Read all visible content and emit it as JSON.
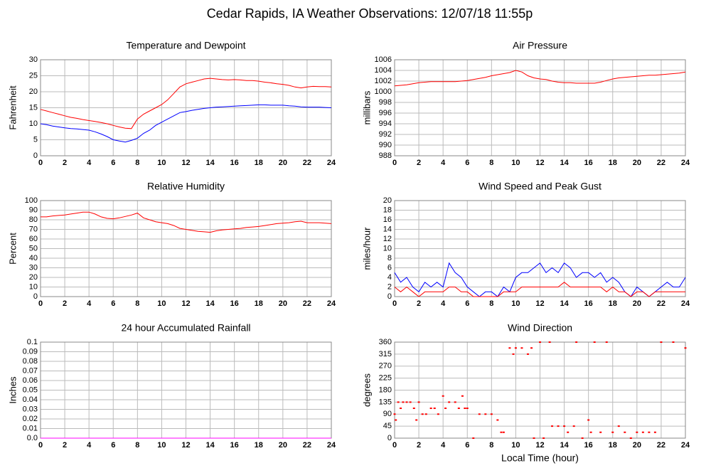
{
  "title": "Cedar Rapids, IA Weather Observations: 12/07/18 11:55p",
  "chart_data": [
    {
      "type": "line",
      "title": "Temperature and Dewpoint",
      "ylabel": "Fahrenheit",
      "x": [
        0,
        0.5,
        1,
        1.5,
        2,
        2.5,
        3,
        3.5,
        4,
        4.5,
        5,
        5.5,
        6,
        6.5,
        7,
        7.5,
        8,
        8.5,
        9,
        9.5,
        10,
        10.5,
        11,
        11.5,
        12,
        12.5,
        13,
        13.5,
        14,
        14.5,
        15,
        15.5,
        16,
        16.5,
        17,
        17.5,
        18,
        18.5,
        19,
        19.5,
        20,
        20.5,
        21,
        21.5,
        22,
        22.5,
        23,
        23.5,
        24
      ],
      "series": [
        {
          "color": "#ff0000",
          "values": [
            14.5,
            14,
            13.5,
            13,
            12.5,
            12,
            11.7,
            11.3,
            11,
            10.7,
            10.4,
            10,
            9.5,
            9,
            8.6,
            8.5,
            11.5,
            13,
            14,
            15,
            16,
            17.5,
            19.5,
            21.5,
            22.5,
            23,
            23.5,
            24,
            24.2,
            24,
            23.8,
            23.7,
            23.8,
            23.7,
            23.5,
            23.5,
            23.3,
            23,
            22.8,
            22.5,
            22.3,
            22,
            21.5,
            21.2,
            21.5,
            21.7,
            21.6,
            21.6,
            21.5
          ]
        },
        {
          "color": "#0000ff",
          "values": [
            10,
            9.7,
            9.3,
            9,
            8.7,
            8.5,
            8.4,
            8.2,
            8,
            7.5,
            6.8,
            6,
            5,
            4.6,
            4.3,
            4.8,
            5.5,
            7,
            8,
            9.5,
            10.5,
            11.5,
            12.5,
            13.5,
            13.8,
            14.2,
            14.5,
            14.8,
            15,
            15.2,
            15.3,
            15.4,
            15.5,
            15.6,
            15.7,
            15.8,
            15.9,
            15.9,
            15.8,
            15.8,
            15.8,
            15.6,
            15.5,
            15.3,
            15.2,
            15.2,
            15.2,
            15.1,
            15
          ]
        }
      ],
      "xlim": [
        0,
        24
      ],
      "xticks": [
        0,
        2,
        4,
        6,
        8,
        10,
        12,
        14,
        16,
        18,
        20,
        22,
        24
      ],
      "ylim": [
        0,
        30
      ],
      "yticks": [
        0,
        5,
        10,
        15,
        20,
        25,
        30
      ],
      "grid": true
    },
    {
      "type": "line",
      "title": "Air Pressure",
      "ylabel": "millibars",
      "x": [
        0,
        0.5,
        1,
        1.5,
        2,
        2.5,
        3,
        3.5,
        4,
        4.5,
        5,
        5.5,
        6,
        6.5,
        7,
        7.5,
        8,
        8.5,
        9,
        9.5,
        10,
        10.5,
        11,
        11.5,
        12,
        12.5,
        13,
        13.5,
        14,
        14.5,
        15,
        15.5,
        16,
        16.5,
        17,
        17.5,
        18,
        18.5,
        19,
        19.5,
        20,
        20.5,
        21,
        21.5,
        22,
        22.5,
        23,
        23.5,
        24
      ],
      "series": [
        {
          "color": "#ff0000",
          "values": [
            1001.1,
            1001.2,
            1001.3,
            1001.5,
            1001.7,
            1001.8,
            1001.9,
            1001.9,
            1001.9,
            1001.9,
            1001.9,
            1002.0,
            1002.1,
            1002.3,
            1002.5,
            1002.7,
            1003.0,
            1003.2,
            1003.4,
            1003.6,
            1004.0,
            1003.7,
            1003.0,
            1002.6,
            1002.4,
            1002.3,
            1002.0,
            1001.8,
            1001.7,
            1001.7,
            1001.6,
            1001.6,
            1001.6,
            1001.6,
            1001.8,
            1002.1,
            1002.4,
            1002.6,
            1002.7,
            1002.8,
            1002.9,
            1003.0,
            1003.1,
            1003.1,
            1003.2,
            1003.3,
            1003.4,
            1003.5,
            1003.7
          ]
        }
      ],
      "xlim": [
        0,
        24
      ],
      "xticks": [
        0,
        2,
        4,
        6,
        8,
        10,
        12,
        14,
        16,
        18,
        20,
        22,
        24
      ],
      "ylim": [
        988,
        1006
      ],
      "yticks": [
        988,
        990,
        992,
        994,
        996,
        998,
        1000,
        1002,
        1004,
        1006
      ],
      "grid": true
    },
    {
      "type": "line",
      "title": "Relative Humidity",
      "ylabel": "Percent",
      "x": [
        0,
        0.5,
        1,
        1.5,
        2,
        2.5,
        3,
        3.5,
        4,
        4.5,
        5,
        5.5,
        6,
        6.5,
        7,
        7.5,
        8,
        8.5,
        9,
        9.5,
        10,
        10.5,
        11,
        11.5,
        12,
        12.5,
        13,
        13.5,
        14,
        14.5,
        15,
        15.5,
        16,
        16.5,
        17,
        17.5,
        18,
        18.5,
        19,
        19.5,
        20,
        20.5,
        21,
        21.5,
        22,
        22.5,
        23,
        23.5,
        24
      ],
      "series": [
        {
          "color": "#ff0000",
          "values": [
            83,
            83,
            84,
            84.5,
            85,
            86,
            87,
            88,
            88,
            86,
            83,
            81.5,
            81,
            82,
            83.5,
            85,
            87,
            82,
            80,
            78,
            77,
            76,
            74,
            71,
            70,
            69,
            68,
            67.5,
            67,
            68.5,
            69.5,
            70,
            70.5,
            71,
            72,
            72.5,
            73,
            74,
            75,
            76,
            76.5,
            77,
            78,
            78.5,
            77,
            77,
            77,
            76.5,
            76
          ]
        }
      ],
      "xlim": [
        0,
        24
      ],
      "xticks": [
        0,
        2,
        4,
        6,
        8,
        10,
        12,
        14,
        16,
        18,
        20,
        22,
        24
      ],
      "ylim": [
        0,
        100
      ],
      "yticks": [
        0,
        10,
        20,
        30,
        40,
        50,
        60,
        70,
        80,
        90,
        100
      ],
      "grid": true
    },
    {
      "type": "line",
      "title": "Wind Speed and Peak Gust",
      "ylabel": "miles/hour",
      "x": [
        0,
        0.5,
        1,
        1.5,
        2,
        2.5,
        3,
        3.5,
        4,
        4.5,
        5,
        5.5,
        6,
        6.5,
        7,
        7.5,
        8,
        8.5,
        9,
        9.5,
        10,
        10.5,
        11,
        11.5,
        12,
        12.5,
        13,
        13.5,
        14,
        14.5,
        15,
        15.5,
        16,
        16.5,
        17,
        17.5,
        18,
        18.5,
        19,
        19.5,
        20,
        20.5,
        21,
        21.5,
        22,
        22.5,
        23,
        23.5,
        24
      ],
      "series": [
        {
          "color": "#0000ff",
          "values": [
            5,
            3,
            4,
            2,
            1,
            3,
            2,
            3,
            2,
            7,
            5,
            4,
            2,
            1,
            0,
            1,
            1,
            0,
            2,
            1,
            4,
            5,
            5,
            6,
            7,
            5,
            6,
            5,
            7,
            6,
            4,
            5,
            5,
            4,
            5,
            3,
            4,
            3,
            1,
            0,
            2,
            1,
            0,
            1,
            2,
            3,
            2,
            2,
            4
          ]
        },
        {
          "color": "#ff0000",
          "values": [
            2,
            1,
            2,
            1,
            0,
            1,
            1,
            1,
            1,
            2,
            2,
            1,
            1,
            0,
            0,
            0,
            0,
            0,
            1,
            1,
            1,
            2,
            2,
            2,
            2,
            2,
            2,
            2,
            3,
            2,
            2,
            2,
            2,
            2,
            2,
            1,
            2,
            1,
            1,
            0,
            1,
            1,
            0,
            1,
            1,
            1,
            1,
            1,
            1
          ]
        }
      ],
      "xlim": [
        0,
        24
      ],
      "xticks": [
        0,
        2,
        4,
        6,
        8,
        10,
        12,
        14,
        16,
        18,
        20,
        22,
        24
      ],
      "ylim": [
        0,
        20
      ],
      "yticks": [
        0,
        2,
        4,
        6,
        8,
        10,
        12,
        14,
        16,
        18,
        20
      ],
      "grid": true
    },
    {
      "type": "line",
      "title": "24 hour Accumulated Rainfall",
      "ylabel": "Inches",
      "x": [
        0,
        24
      ],
      "series": [
        {
          "color": "#ff00ff",
          "values": [
            0,
            0
          ]
        }
      ],
      "xlim": [
        0,
        24
      ],
      "xticks": [
        0,
        2,
        4,
        6,
        8,
        10,
        12,
        14,
        16,
        18,
        20,
        22,
        24
      ],
      "ylim": [
        0,
        0.1
      ],
      "yticks": [
        {
          "value": 0,
          "label": "0.0"
        },
        0.01,
        0.02,
        0.03,
        0.04,
        0.05,
        0.06,
        0.07,
        0.08,
        0.09,
        0.1
      ],
      "grid": true
    },
    {
      "type": "scatter",
      "title": "Wind Direction",
      "ylabel": "degrees",
      "xlabel": "Local Time (hour)",
      "x": [
        0,
        0.1,
        0.3,
        0.5,
        0.7,
        1,
        1.3,
        1.6,
        1.8,
        2,
        2.3,
        2.6,
        3,
        3.3,
        3.6,
        4,
        4.2,
        4.5,
        5,
        5.3,
        5.6,
        5.8,
        6,
        6.5,
        7,
        7.5,
        8,
        8.5,
        8.8,
        9,
        9.5,
        9.8,
        10,
        10.5,
        11,
        11.3,
        11.5,
        12,
        12.3,
        12.8,
        13,
        13.5,
        14,
        14.3,
        14.8,
        15,
        15.5,
        16,
        16.2,
        16.5,
        17,
        17.5,
        18,
        18.5,
        19,
        19.5,
        20,
        20.5,
        21,
        21.5,
        22,
        23,
        24
      ],
      "series": [
        {
          "color": "#ff0000",
          "values": [
            90,
            68,
            135,
            112,
            135,
            135,
            135,
            112,
            68,
            135,
            90,
            90,
            112,
            112,
            90,
            158,
            112,
            135,
            135,
            112,
            158,
            112,
            112,
            0,
            90,
            90,
            90,
            68,
            22,
            22,
            338,
            315,
            338,
            338,
            315,
            338,
            0,
            360,
            0,
            360,
            45,
            45,
            45,
            22,
            45,
            360,
            0,
            68,
            22,
            360,
            22,
            360,
            22,
            45,
            22,
            0,
            22,
            22,
            22,
            22,
            360,
            360,
            338
          ]
        }
      ],
      "xlim": [
        0,
        24
      ],
      "xticks": [
        0,
        2,
        4,
        6,
        8,
        10,
        12,
        14,
        16,
        18,
        20,
        22,
        24
      ],
      "ylim": [
        0,
        360
      ],
      "yticks": [
        0,
        45,
        90,
        135,
        180,
        225,
        270,
        315,
        360
      ],
      "grid": true
    }
  ]
}
